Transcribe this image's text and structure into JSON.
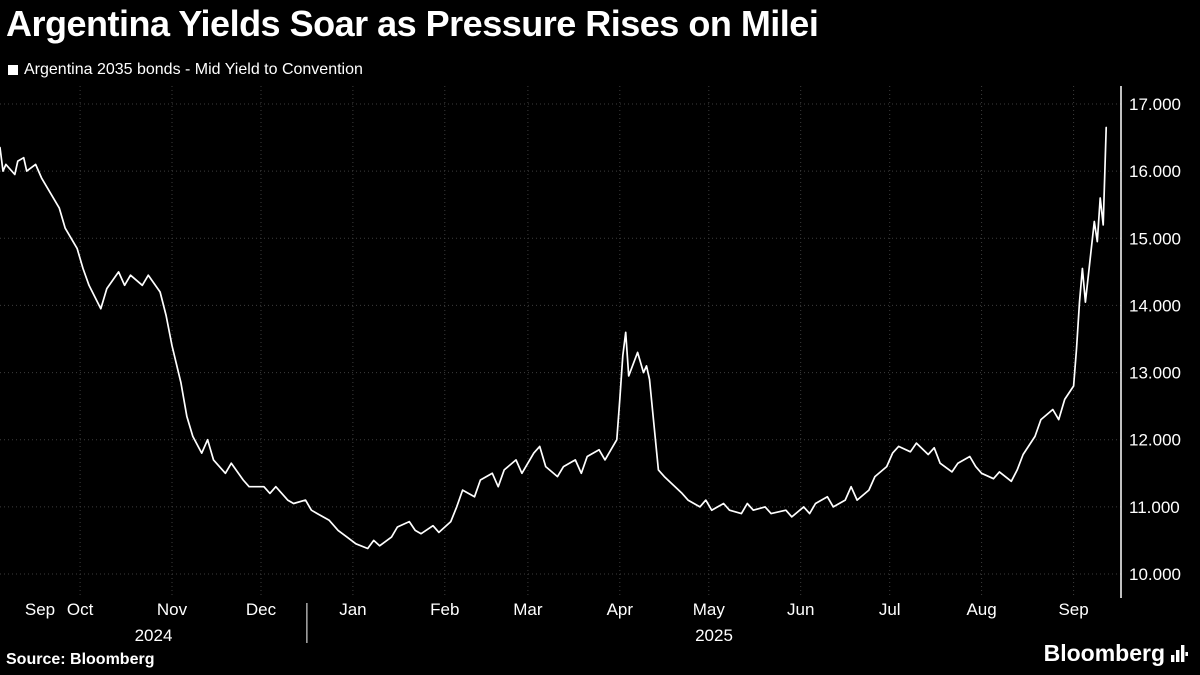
{
  "header": {
    "title": "Argentina Yields Soar as Pressure Rises on Milei",
    "legend_label": "Argentina 2035 bonds - Mid Yield to Convention"
  },
  "footer": {
    "source": "Source: Bloomberg",
    "logo_text": "Bloomberg"
  },
  "colors": {
    "background": "#000000",
    "text": "#ffffff",
    "line": "#ffffff",
    "axis": "#ffffff",
    "grid": "#3d3d3d"
  },
  "chart_data": {
    "type": "line",
    "title": "Argentina Yields Soar as Pressure Rises on Milei",
    "series_name": "Argentina 2035 bonds - Mid Yield to Convention",
    "grid": "dotted",
    "legend_position": "top-left",
    "y_axis_side": "right",
    "ylim": [
      10,
      17
    ],
    "y_ticks": [
      17,
      16,
      15,
      14,
      13,
      12,
      11,
      10
    ],
    "y_tick_labels": [
      "17.000",
      "16.000",
      "15.000",
      "14.000",
      "13.000",
      "12.000",
      "11.000",
      "10.000"
    ],
    "x_start": "2024-09-04",
    "x_end": "2025-09-17",
    "x_month_ticks": [
      {
        "label": "Sep",
        "date": "2024-09-01"
      },
      {
        "label": "Oct",
        "date": "2024-10-01"
      },
      {
        "label": "Nov",
        "date": "2024-11-01"
      },
      {
        "label": "Dec",
        "date": "2024-12-01"
      },
      {
        "label": "Jan",
        "date": "2025-01-01"
      },
      {
        "label": "Feb",
        "date": "2025-02-01"
      },
      {
        "label": "Mar",
        "date": "2025-03-01"
      },
      {
        "label": "Apr",
        "date": "2025-04-01"
      },
      {
        "label": "May",
        "date": "2025-05-01"
      },
      {
        "label": "Jun",
        "date": "2025-06-01"
      },
      {
        "label": "Jul",
        "date": "2025-07-01"
      },
      {
        "label": "Aug",
        "date": "2025-08-01"
      },
      {
        "label": "Sep",
        "date": "2025-09-01"
      }
    ],
    "year_labels": [
      "2024",
      "2025"
    ],
    "year_divider_dates": [
      "2024-12-01",
      "2025-01-01"
    ],
    "points": [
      [
        "2024-09-04",
        16.35
      ],
      [
        "2024-09-05",
        16.0
      ],
      [
        "2024-09-06",
        16.1
      ],
      [
        "2024-09-09",
        15.95
      ],
      [
        "2024-09-10",
        16.15
      ],
      [
        "2024-09-12",
        16.2
      ],
      [
        "2024-09-13",
        16.0
      ],
      [
        "2024-09-16",
        16.1
      ],
      [
        "2024-09-18",
        15.9
      ],
      [
        "2024-09-20",
        15.75
      ],
      [
        "2024-09-24",
        15.45
      ],
      [
        "2024-09-26",
        15.15
      ],
      [
        "2024-09-30",
        14.85
      ],
      [
        "2024-10-02",
        14.55
      ],
      [
        "2024-10-04",
        14.3
      ],
      [
        "2024-10-08",
        13.95
      ],
      [
        "2024-10-10",
        14.25
      ],
      [
        "2024-10-14",
        14.5
      ],
      [
        "2024-10-16",
        14.3
      ],
      [
        "2024-10-18",
        14.45
      ],
      [
        "2024-10-22",
        14.3
      ],
      [
        "2024-10-24",
        14.45
      ],
      [
        "2024-10-28",
        14.2
      ],
      [
        "2024-10-30",
        13.85
      ],
      [
        "2024-11-01",
        13.4
      ],
      [
        "2024-11-04",
        12.85
      ],
      [
        "2024-11-06",
        12.35
      ],
      [
        "2024-11-08",
        12.05
      ],
      [
        "2024-11-11",
        11.8
      ],
      [
        "2024-11-13",
        12.0
      ],
      [
        "2024-11-15",
        11.7
      ],
      [
        "2024-11-19",
        11.5
      ],
      [
        "2024-11-21",
        11.65
      ],
      [
        "2024-11-25",
        11.4
      ],
      [
        "2024-11-27",
        11.3
      ],
      [
        "2024-12-02",
        11.3
      ],
      [
        "2024-12-04",
        11.2
      ],
      [
        "2024-12-06",
        11.3
      ],
      [
        "2024-12-10",
        11.1
      ],
      [
        "2024-12-12",
        11.05
      ],
      [
        "2024-12-16",
        11.1
      ],
      [
        "2024-12-18",
        10.95
      ],
      [
        "2024-12-20",
        10.9
      ],
      [
        "2024-12-24",
        10.8
      ],
      [
        "2024-12-27",
        10.65
      ],
      [
        "2024-12-30",
        10.55
      ],
      [
        "2025-01-02",
        10.45
      ],
      [
        "2025-01-06",
        10.38
      ],
      [
        "2025-01-08",
        10.5
      ],
      [
        "2025-01-10",
        10.42
      ],
      [
        "2025-01-14",
        10.55
      ],
      [
        "2025-01-16",
        10.7
      ],
      [
        "2025-01-20",
        10.78
      ],
      [
        "2025-01-22",
        10.65
      ],
      [
        "2025-01-24",
        10.6
      ],
      [
        "2025-01-28",
        10.72
      ],
      [
        "2025-01-30",
        10.62
      ],
      [
        "2025-02-03",
        10.78
      ],
      [
        "2025-02-05",
        11.0
      ],
      [
        "2025-02-07",
        11.25
      ],
      [
        "2025-02-11",
        11.15
      ],
      [
        "2025-02-13",
        11.4
      ],
      [
        "2025-02-17",
        11.5
      ],
      [
        "2025-02-19",
        11.3
      ],
      [
        "2025-02-21",
        11.55
      ],
      [
        "2025-02-25",
        11.7
      ],
      [
        "2025-02-27",
        11.5
      ],
      [
        "2025-03-03",
        11.8
      ],
      [
        "2025-03-05",
        11.9
      ],
      [
        "2025-03-07",
        11.6
      ],
      [
        "2025-03-11",
        11.45
      ],
      [
        "2025-03-13",
        11.6
      ],
      [
        "2025-03-17",
        11.7
      ],
      [
        "2025-03-19",
        11.5
      ],
      [
        "2025-03-21",
        11.75
      ],
      [
        "2025-03-25",
        11.85
      ],
      [
        "2025-03-27",
        11.7
      ],
      [
        "2025-03-31",
        12.0
      ],
      [
        "2025-04-01",
        12.6
      ],
      [
        "2025-04-02",
        13.25
      ],
      [
        "2025-04-03",
        13.6
      ],
      [
        "2025-04-04",
        12.95
      ],
      [
        "2025-04-07",
        13.3
      ],
      [
        "2025-04-09",
        13.0
      ],
      [
        "2025-04-10",
        13.1
      ],
      [
        "2025-04-11",
        12.9
      ],
      [
        "2025-04-14",
        11.55
      ],
      [
        "2025-04-16",
        11.45
      ],
      [
        "2025-04-22",
        11.2
      ],
      [
        "2025-04-24",
        11.1
      ],
      [
        "2025-04-28",
        11.0
      ],
      [
        "2025-04-30",
        11.1
      ],
      [
        "2025-05-02",
        10.95
      ],
      [
        "2025-05-06",
        11.05
      ],
      [
        "2025-05-08",
        10.95
      ],
      [
        "2025-05-12",
        10.9
      ],
      [
        "2025-05-14",
        11.05
      ],
      [
        "2025-05-16",
        10.95
      ],
      [
        "2025-05-20",
        11.0
      ],
      [
        "2025-05-22",
        10.9
      ],
      [
        "2025-05-27",
        10.95
      ],
      [
        "2025-05-29",
        10.85
      ],
      [
        "2025-06-02",
        11.0
      ],
      [
        "2025-06-04",
        10.9
      ],
      [
        "2025-06-06",
        11.05
      ],
      [
        "2025-06-10",
        11.15
      ],
      [
        "2025-06-12",
        11.0
      ],
      [
        "2025-06-16",
        11.1
      ],
      [
        "2025-06-18",
        11.3
      ],
      [
        "2025-06-20",
        11.1
      ],
      [
        "2025-06-24",
        11.25
      ],
      [
        "2025-06-26",
        11.45
      ],
      [
        "2025-06-30",
        11.6
      ],
      [
        "2025-07-02",
        11.8
      ],
      [
        "2025-07-04",
        11.9
      ],
      [
        "2025-07-08",
        11.82
      ],
      [
        "2025-07-10",
        11.95
      ],
      [
        "2025-07-14",
        11.78
      ],
      [
        "2025-07-16",
        11.88
      ],
      [
        "2025-07-18",
        11.65
      ],
      [
        "2025-07-22",
        11.52
      ],
      [
        "2025-07-24",
        11.65
      ],
      [
        "2025-07-28",
        11.75
      ],
      [
        "2025-07-30",
        11.6
      ],
      [
        "2025-08-01",
        11.5
      ],
      [
        "2025-08-05",
        11.42
      ],
      [
        "2025-08-07",
        11.52
      ],
      [
        "2025-08-11",
        11.38
      ],
      [
        "2025-08-13",
        11.55
      ],
      [
        "2025-08-15",
        11.78
      ],
      [
        "2025-08-19",
        12.05
      ],
      [
        "2025-08-21",
        12.3
      ],
      [
        "2025-08-25",
        12.45
      ],
      [
        "2025-08-27",
        12.3
      ],
      [
        "2025-08-29",
        12.6
      ],
      [
        "2025-09-01",
        12.8
      ],
      [
        "2025-09-02",
        13.35
      ],
      [
        "2025-09-03",
        14.05
      ],
      [
        "2025-09-04",
        14.55
      ],
      [
        "2025-09-05",
        14.05
      ],
      [
        "2025-09-08",
        15.25
      ],
      [
        "2025-09-09",
        14.95
      ],
      [
        "2025-09-10",
        15.6
      ],
      [
        "2025-09-11",
        15.2
      ],
      [
        "2025-09-12",
        16.65
      ]
    ]
  }
}
